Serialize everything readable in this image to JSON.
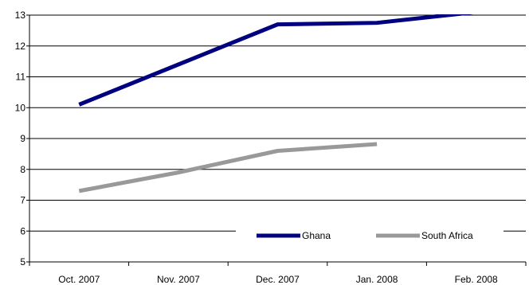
{
  "chart_data": {
    "type": "line",
    "title": "",
    "xlabel": "",
    "ylabel": "",
    "categories": [
      "Oct. 2007",
      "Nov. 2007",
      "Dec. 2007",
      "Jan. 2008",
      "Feb. 2008"
    ],
    "ylim": [
      5,
      13
    ],
    "yticks": [
      "5",
      "6",
      "7",
      "8",
      "9",
      "10",
      "11",
      "12",
      "13"
    ],
    "grid": true,
    "legend_position": "bottom-right",
    "series": [
      {
        "name": "Ghana",
        "color": "#000080",
        "values": [
          10.1,
          11.4,
          12.7,
          12.75,
          13.1
        ]
      },
      {
        "name": "South Africa",
        "color": "#999999",
        "values": [
          7.3,
          7.9,
          8.6,
          8.82,
          null
        ]
      }
    ]
  }
}
